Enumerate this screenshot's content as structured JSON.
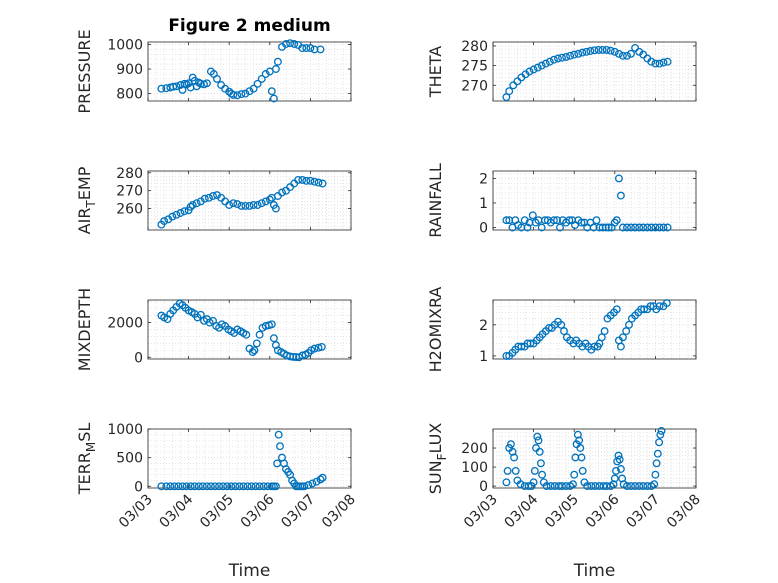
{
  "chart_data": [
    {
      "type": "scatter",
      "title": "Figure 2 medium",
      "ylabel": "PRESSURE",
      "ylim": [
        770,
        1010
      ],
      "yticks": [
        800,
        900,
        1000
      ],
      "ytick_labels": [
        "800",
        "900",
        "1000"
      ],
      "x": [
        3.33,
        3.45,
        3.55,
        3.62,
        3.7,
        3.8,
        3.85,
        3.9,
        3.95,
        4.0,
        4.05,
        4.1,
        4.15,
        4.2,
        4.25,
        4.3,
        4.38,
        4.45,
        4.55,
        4.62,
        4.7,
        4.8,
        4.9,
        5.0,
        5.05,
        5.1,
        5.2,
        5.3,
        5.4,
        5.5,
        5.6,
        5.7,
        5.8,
        5.9,
        6.0,
        6.05,
        6.1,
        6.15,
        6.2,
        6.3,
        6.4,
        6.5,
        6.6,
        6.7,
        6.8,
        6.9,
        7.0,
        7.1,
        7.25
      ],
      "y": [
        820,
        822,
        825,
        828,
        830,
        835,
        815,
        840,
        838,
        842,
        825,
        865,
        852,
        830,
        845,
        840,
        838,
        842,
        890,
        880,
        860,
        835,
        820,
        808,
        800,
        795,
        793,
        798,
        800,
        810,
        820,
        840,
        860,
        880,
        890,
        810,
        780,
        900,
        930,
        990,
        1002,
        1005,
        1002,
        998,
        985,
        985,
        985,
        980,
        980
      ]
    },
    {
      "type": "scatter",
      "ylabel": "THETA",
      "ylim": [
        266,
        281
      ],
      "yticks": [
        270,
        275,
        280
      ],
      "ytick_labels": [
        "270",
        "275",
        "280"
      ],
      "x": [
        3.33,
        3.4,
        3.5,
        3.6,
        3.7,
        3.8,
        3.9,
        4.0,
        4.1,
        4.2,
        4.3,
        4.4,
        4.5,
        4.6,
        4.7,
        4.8,
        4.9,
        5.0,
        5.1,
        5.2,
        5.3,
        5.4,
        5.5,
        5.6,
        5.7,
        5.8,
        5.9,
        6.0,
        6.1,
        6.2,
        6.3,
        6.4,
        6.5,
        6.6,
        6.7,
        6.8,
        6.9,
        7.0,
        7.1,
        7.2,
        7.3
      ],
      "y": [
        267,
        268.5,
        270,
        271,
        272,
        272.8,
        273.5,
        274,
        274.5,
        275,
        275.5,
        276,
        276.5,
        276.8,
        277,
        277.2,
        277.5,
        277.8,
        278,
        278.3,
        278.5,
        278.7,
        278.9,
        279,
        279,
        279,
        278.8,
        278.5,
        278,
        277.5,
        277.5,
        278,
        279.5,
        278.5,
        277.8,
        276.8,
        276,
        275.5,
        275.5,
        275.8,
        276
      ]
    },
    {
      "type": "scatter",
      "ylabel": "AIR_TEMP",
      "ylabel_main": "AIR",
      "ylabel_sub": "T",
      "ylabel_tail": "EMP",
      "ylim": [
        248,
        281
      ],
      "yticks": [
        260,
        270,
        280
      ],
      "ytick_labels": [
        "260",
        "270",
        "280"
      ],
      "x": [
        3.33,
        3.4,
        3.5,
        3.6,
        3.7,
        3.8,
        3.9,
        4.0,
        4.05,
        4.1,
        4.2,
        4.3,
        4.4,
        4.5,
        4.6,
        4.7,
        4.8,
        4.9,
        5.0,
        5.1,
        5.2,
        5.3,
        5.4,
        5.5,
        5.6,
        5.7,
        5.8,
        5.9,
        6.0,
        6.05,
        6.1,
        6.15,
        6.2,
        6.3,
        6.4,
        6.5,
        6.6,
        6.7,
        6.8,
        6.9,
        7.0,
        7.1,
        7.2,
        7.3
      ],
      "y": [
        251,
        253,
        254,
        255.5,
        256.5,
        257.5,
        258.5,
        259,
        261,
        262,
        263,
        264,
        265.5,
        266,
        267,
        267.5,
        266,
        264,
        262,
        263,
        262.5,
        261.5,
        261.5,
        261.5,
        262,
        262,
        263,
        264,
        265,
        266,
        262,
        260,
        267,
        269,
        270,
        272,
        274,
        276,
        276,
        275.5,
        275.5,
        275,
        274.5,
        274
      ]
    },
    {
      "type": "scatter",
      "ylabel": "RAINFALL",
      "ylim": [
        -0.1,
        2.3
      ],
      "yticks": [
        0,
        1,
        2
      ],
      "ytick_labels": [
        "0",
        "1",
        "2"
      ],
      "x": [
        3.33,
        3.4,
        3.48,
        3.55,
        3.62,
        3.7,
        3.78,
        3.85,
        3.9,
        3.98,
        4.05,
        4.12,
        4.2,
        4.28,
        4.35,
        4.42,
        4.5,
        4.58,
        4.65,
        4.72,
        4.8,
        4.88,
        4.95,
        5.02,
        5.1,
        5.18,
        5.25,
        5.32,
        5.4,
        5.48,
        5.55,
        5.62,
        5.7,
        5.78,
        5.85,
        5.92,
        6.0,
        6.05,
        6.1,
        6.15,
        6.2,
        6.3,
        6.4,
        6.5,
        6.6,
        6.7,
        6.8,
        6.9,
        7.0,
        7.1,
        7.2,
        7.3
      ],
      "y": [
        0.3,
        0.3,
        0.0,
        0.3,
        0.1,
        0.0,
        0.3,
        0.0,
        0.2,
        0.5,
        0.2,
        0.3,
        0.0,
        0.3,
        0.3,
        0.2,
        0.3,
        0.3,
        0.0,
        0.3,
        0.2,
        0.3,
        0.3,
        0.1,
        0.3,
        0.2,
        0.2,
        0.0,
        0.2,
        0.0,
        0.3,
        0.0,
        0.0,
        0.0,
        0.0,
        0.0,
        0.2,
        0.3,
        2.0,
        1.3,
        0.0,
        0.0,
        0.0,
        0.0,
        0.0,
        0.0,
        0.0,
        0.0,
        0.0,
        0.0,
        0.0,
        0.0
      ]
    },
    {
      "type": "scatter",
      "ylabel": "MIXDEPTH",
      "ylim": [
        -100,
        3300
      ],
      "yticks": [
        0,
        2000
      ],
      "ytick_labels": [
        "0",
        "2000"
      ],
      "x": [
        3.33,
        3.4,
        3.48,
        3.55,
        3.62,
        3.7,
        3.78,
        3.85,
        3.92,
        4.0,
        4.08,
        4.15,
        4.22,
        4.3,
        4.38,
        4.45,
        4.52,
        4.6,
        4.68,
        4.75,
        4.82,
        4.9,
        4.98,
        5.05,
        5.12,
        5.2,
        5.28,
        5.35,
        5.42,
        5.5,
        5.58,
        5.62,
        5.68,
        5.75,
        5.82,
        5.9,
        5.98,
        6.05,
        6.1,
        6.15,
        6.2,
        6.28,
        6.35,
        6.42,
        6.5,
        6.58,
        6.65,
        6.72,
        6.8,
        6.88,
        6.95,
        7.02,
        7.1,
        7.2,
        7.28
      ],
      "y": [
        2400,
        2300,
        2200,
        2500,
        2700,
        2900,
        3100,
        3000,
        2850,
        2700,
        2600,
        2500,
        2300,
        2450,
        2100,
        2200,
        2000,
        2100,
        1800,
        1700,
        1900,
        1800,
        1600,
        1500,
        1400,
        1600,
        1500,
        1400,
        1300,
        500,
        300,
        400,
        800,
        1300,
        1700,
        1800,
        1850,
        1900,
        1100,
        700,
        400,
        300,
        200,
        100,
        50,
        20,
        10,
        0,
        100,
        150,
        250,
        400,
        500,
        550,
        600
      ]
    },
    {
      "type": "scatter",
      "ylabel": "H2OMIXRA",
      "ylim": [
        0.9,
        2.8
      ],
      "yticks": [
        1,
        2
      ],
      "ytick_labels": [
        "1",
        "2"
      ],
      "x": [
        3.33,
        3.4,
        3.48,
        3.55,
        3.62,
        3.7,
        3.78,
        3.85,
        3.92,
        4.0,
        4.08,
        4.15,
        4.22,
        4.3,
        4.38,
        4.45,
        4.52,
        4.6,
        4.68,
        4.75,
        4.82,
        4.9,
        4.98,
        5.05,
        5.12,
        5.2,
        5.28,
        5.35,
        5.42,
        5.5,
        5.58,
        5.62,
        5.68,
        5.75,
        5.82,
        5.9,
        5.98,
        6.05,
        6.1,
        6.15,
        6.2,
        6.28,
        6.35,
        6.42,
        6.5,
        6.58,
        6.65,
        6.72,
        6.8,
        6.88,
        6.95,
        7.02,
        7.1,
        7.2,
        7.28
      ],
      "y": [
        1.0,
        1.0,
        1.1,
        1.2,
        1.3,
        1.3,
        1.3,
        1.4,
        1.4,
        1.4,
        1.5,
        1.6,
        1.7,
        1.8,
        1.9,
        1.9,
        2.0,
        2.1,
        2.0,
        1.8,
        1.6,
        1.5,
        1.4,
        1.5,
        1.4,
        1.3,
        1.4,
        1.3,
        1.2,
        1.3,
        1.3,
        1.4,
        1.6,
        1.8,
        2.2,
        2.3,
        2.4,
        2.5,
        1.5,
        1.3,
        1.6,
        1.8,
        2.0,
        2.2,
        2.3,
        2.4,
        2.5,
        2.5,
        2.5,
        2.6,
        2.6,
        2.5,
        2.6,
        2.6,
        2.7
      ]
    },
    {
      "type": "scatter",
      "ylabel": "TERR_MSL",
      "ylabel_main": "TERR",
      "ylabel_sub": "M",
      "ylabel_tail": "SL",
      "ylim": [
        -30,
        1000
      ],
      "yticks": [
        0,
        500,
        1000
      ],
      "ytick_labels": [
        "0",
        "500",
        "1000"
      ],
      "x": [
        3.33,
        3.45,
        3.55,
        3.65,
        3.75,
        3.85,
        3.95,
        4.05,
        4.15,
        4.25,
        4.35,
        4.45,
        4.55,
        4.65,
        4.75,
        4.85,
        4.95,
        5.05,
        5.15,
        5.25,
        5.35,
        5.45,
        5.55,
        5.65,
        5.75,
        5.85,
        5.95,
        6.05,
        6.1,
        6.15,
        6.18,
        6.22,
        6.25,
        6.3,
        6.35,
        6.4,
        6.45,
        6.5,
        6.55,
        6.6,
        6.65,
        6.7,
        6.75,
        6.8,
        6.85,
        6.95,
        7.05,
        7.15,
        7.25,
        7.3
      ],
      "y": [
        0,
        0,
        0,
        0,
        0,
        0,
        0,
        0,
        0,
        0,
        0,
        0,
        0,
        0,
        0,
        0,
        0,
        0,
        0,
        0,
        0,
        0,
        0,
        0,
        0,
        0,
        0,
        0,
        0,
        0,
        400,
        900,
        700,
        500,
        400,
        300,
        250,
        200,
        100,
        50,
        0,
        0,
        0,
        0,
        0,
        20,
        50,
        80,
        120,
        150
      ]
    },
    {
      "type": "scatter",
      "ylabel": "SUN_FLUX",
      "ylabel_main": "SUN",
      "ylabel_sub": "F",
      "ylabel_tail": "LUX",
      "ylim": [
        -10,
        300
      ],
      "yticks": [
        0,
        100,
        200
      ],
      "ytick_labels": [
        "0",
        "100",
        "200"
      ],
      "x": [
        3.33,
        3.36,
        3.4,
        3.44,
        3.48,
        3.52,
        3.56,
        3.6,
        3.68,
        3.78,
        3.88,
        3.95,
        4.0,
        4.03,
        4.06,
        4.09,
        4.12,
        4.15,
        4.18,
        4.21,
        4.25,
        4.32,
        4.42,
        4.52,
        4.62,
        4.7,
        4.8,
        4.9,
        4.97,
        5.0,
        5.03,
        5.06,
        5.09,
        5.12,
        5.15,
        5.18,
        5.21,
        5.25,
        5.32,
        5.42,
        5.52,
        5.62,
        5.72,
        5.8,
        5.9,
        5.97,
        6.0,
        6.03,
        6.06,
        6.09,
        6.12,
        6.15,
        6.18,
        6.22,
        6.3,
        6.4,
        6.5,
        6.6,
        6.7,
        6.8,
        6.9,
        6.97,
        7.0,
        7.03,
        7.06,
        7.09,
        7.12,
        7.15
      ],
      "y": [
        20,
        80,
        200,
        220,
        180,
        150,
        80,
        30,
        10,
        0,
        0,
        0,
        20,
        80,
        200,
        260,
        240,
        180,
        120,
        60,
        20,
        0,
        0,
        0,
        0,
        0,
        0,
        0,
        10,
        60,
        150,
        220,
        270,
        240,
        200,
        150,
        80,
        20,
        0,
        0,
        0,
        0,
        0,
        0,
        0,
        10,
        40,
        80,
        130,
        160,
        140,
        90,
        40,
        10,
        0,
        0,
        0,
        0,
        0,
        0,
        0,
        10,
        60,
        120,
        170,
        230,
        270,
        290
      ]
    }
  ],
  "shared_axis": {
    "xlabel": "Time",
    "xlim": [
      3.0,
      8.0
    ],
    "xticks": [
      3,
      4,
      5,
      6,
      7,
      8
    ],
    "xtick_labels": [
      "03/03",
      "03/04",
      "03/05",
      "03/06",
      "03/07",
      "03/08"
    ]
  },
  "style": {
    "marker_color": "#0072bd",
    "axis_color": "#262626",
    "grid_color": "#d9d9d9"
  }
}
